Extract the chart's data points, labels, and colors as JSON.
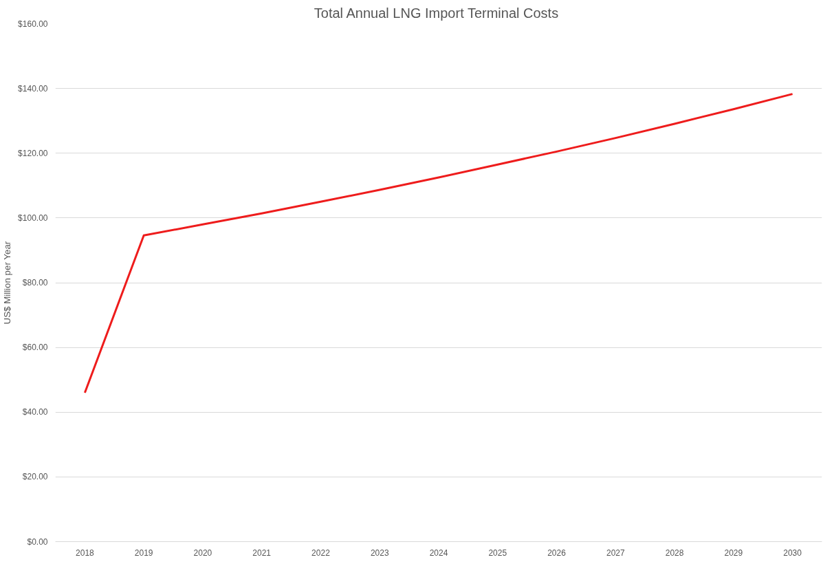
{
  "chart_data": {
    "type": "line",
    "title": "Total  Annual LNG Import Terminal Costs",
    "ylabel": "US$ Million per Year",
    "categories": [
      "2018",
      "2019",
      "2020",
      "2021",
      "2022",
      "2023",
      "2024",
      "2025",
      "2026",
      "2027",
      "2028",
      "2029",
      "2030"
    ],
    "series": [
      {
        "color": "#ee1c1c",
        "values": [
          46.0,
          94.6,
          98.0,
          101.4,
          105.0,
          108.7,
          112.5,
          116.5,
          120.5,
          124.7,
          129.1,
          133.6,
          138.3
        ]
      }
    ],
    "ylim": [
      0,
      160
    ],
    "yticks": [
      {
        "value": 0,
        "label": "$0.00"
      },
      {
        "value": 20,
        "label": "$20.00"
      },
      {
        "value": 40,
        "label": "$40.00"
      },
      {
        "value": 60,
        "label": "$60.00"
      },
      {
        "value": 80,
        "label": "$80.00"
      },
      {
        "value": 100,
        "label": "$100.00"
      },
      {
        "value": 120,
        "label": "$120.00"
      },
      {
        "value": 140,
        "label": "$140.00"
      },
      {
        "value": 160,
        "label": "$160.00"
      }
    ],
    "grid": "y",
    "marker": "none",
    "line_style": "solid"
  }
}
